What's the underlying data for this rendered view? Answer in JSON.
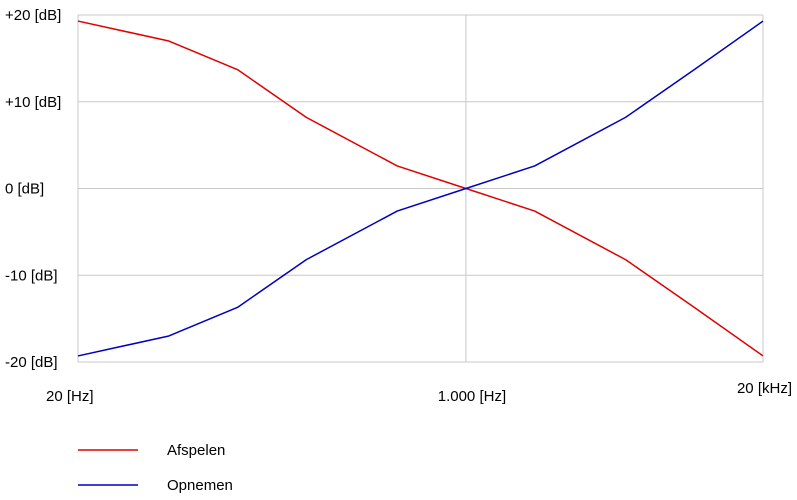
{
  "chart_data": {
    "type": "line",
    "title": "",
    "xlabel": "",
    "ylabel": "",
    "x_scale": "log",
    "xlim": [
      20,
      20000
    ],
    "ylim": [
      -20,
      20
    ],
    "grid": true,
    "y_ticks": [
      {
        "value": 20,
        "label": "+20 [dB]"
      },
      {
        "value": 10,
        "label": "+10 [dB]"
      },
      {
        "value": 0,
        "label": "0 [dB]"
      },
      {
        "value": -10,
        "label": "-10 [dB]"
      },
      {
        "value": -20,
        "label": "-20 [dB]"
      }
    ],
    "x_ticks": [
      {
        "value": 20,
        "label": "20 [Hz]"
      },
      {
        "value": 1000,
        "label": "1.000 [Hz]"
      },
      {
        "value": 20000,
        "label": "20 [kHz]"
      }
    ],
    "legend_position": "bottom-left",
    "x": [
      20,
      50,
      100,
      200,
      500,
      1000,
      2000,
      5000,
      10000,
      20000
    ],
    "series": [
      {
        "name": "Afspelen",
        "color": "#e00000",
        "values": [
          19.3,
          17.0,
          13.7,
          8.2,
          2.6,
          0.0,
          -2.6,
          -8.2,
          -13.7,
          -19.3
        ]
      },
      {
        "name": "Opnemen",
        "color": "#0000c0",
        "values": [
          -19.3,
          -17.0,
          -13.7,
          -8.2,
          -2.6,
          0.0,
          2.6,
          8.2,
          13.7,
          19.3
        ]
      }
    ]
  }
}
